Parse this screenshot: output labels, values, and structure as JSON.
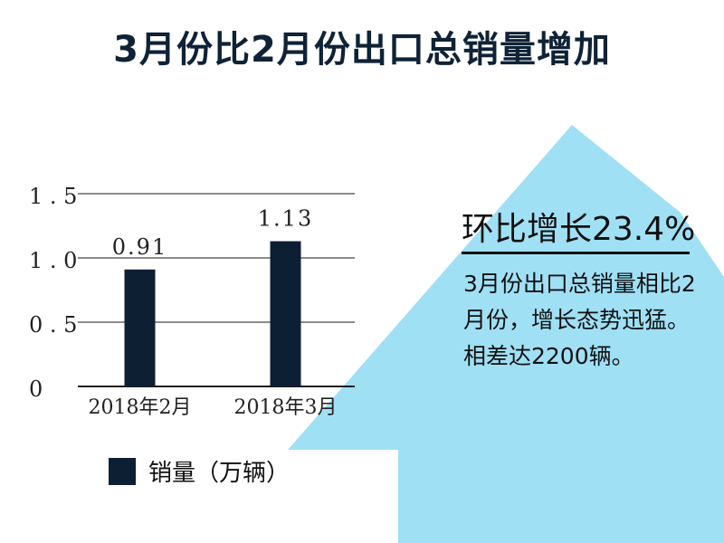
{
  "title": "3月份比2月份出口总销量增加",
  "colors": {
    "bar": "#0d1f33",
    "arrow": "#9fe0f5",
    "title": "#0f2236"
  },
  "chart_data": {
    "type": "bar",
    "categories": [
      "2018年2月",
      "2018年3月"
    ],
    "values": [
      0.91,
      1.13
    ],
    "value_labels": [
      "0.91",
      "1.13"
    ],
    "ylim": [
      0,
      1.5
    ],
    "yticks": [
      "0",
      "0.5",
      "1.0",
      "1.5"
    ],
    "grid": true,
    "legend": {
      "position": "bottom",
      "entries": [
        "销量（万辆）"
      ]
    }
  },
  "callout": {
    "headline": "环比增长23.4%",
    "body": "3月份出口总销量相比2月份，增长态势迅猛。相差达2200辆。"
  }
}
